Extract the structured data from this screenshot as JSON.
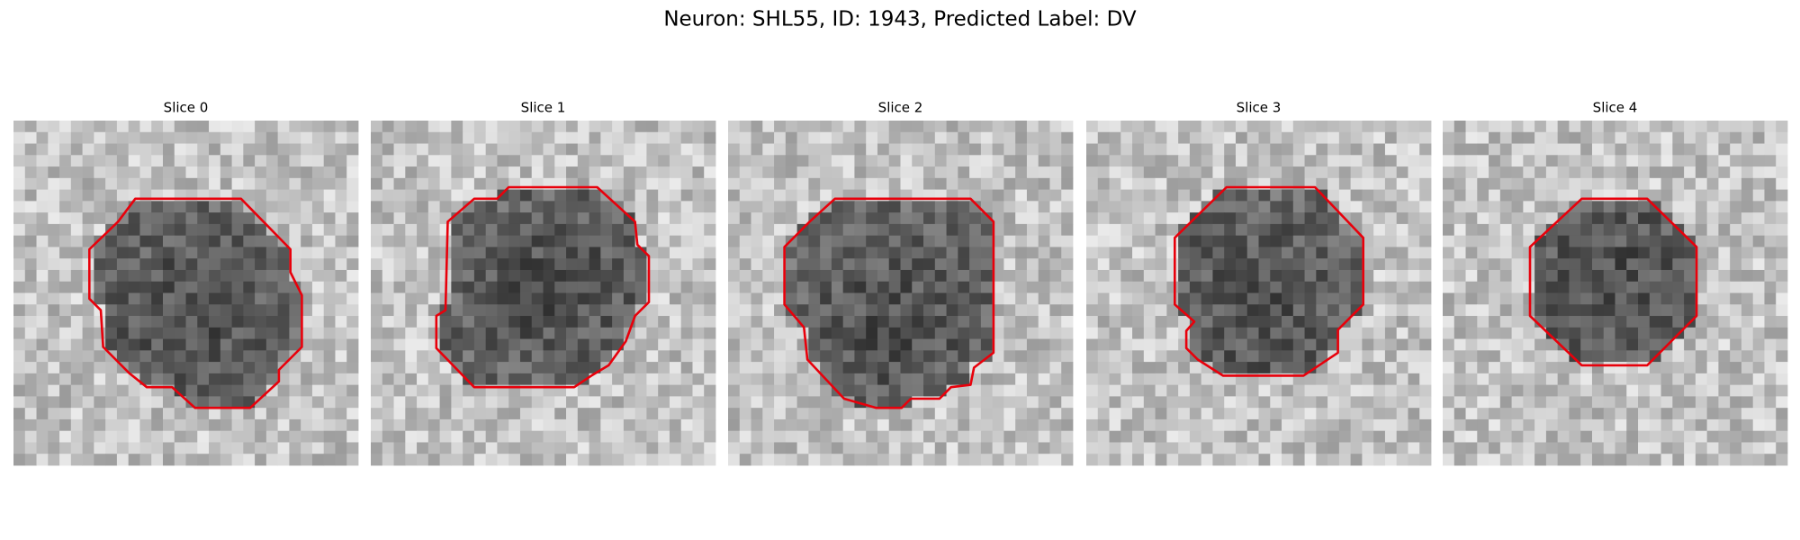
{
  "title": "Neuron: SHL55, ID: 1943, Predicted Label: DV",
  "panels": [
    {
      "title": "Slice 0"
    },
    {
      "title": "Slice 1"
    },
    {
      "title": "Slice 2"
    },
    {
      "title": "Slice 3"
    },
    {
      "title": "Slice 4"
    }
  ]
}
